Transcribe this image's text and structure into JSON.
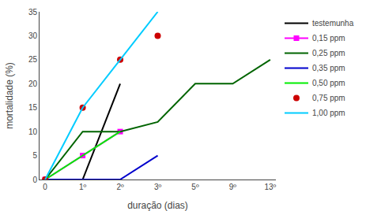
{
  "chart_data": {
    "type": "line",
    "xlabel": "duração (dias)",
    "ylabel": "mortalidade (%)",
    "categories": [
      "0",
      "1º",
      "2º",
      "3º",
      "5º",
      "9º",
      "13º"
    ],
    "series": [
      {
        "name": "testemunha",
        "color": "#000000",
        "marker": "none",
        "line_style": "solid",
        "values": [
          null,
          0,
          20,
          null,
          null,
          null,
          null
        ]
      },
      {
        "name": "0,15 ppm",
        "color": "#ff00ff",
        "marker": "square",
        "line_style": "solid",
        "values": [
          0,
          5,
          10,
          null,
          null,
          null,
          null
        ]
      },
      {
        "name": "0,25 ppm",
        "color": "#006400",
        "marker": "none",
        "line_style": "solid",
        "values": [
          0,
          10,
          10,
          12,
          20,
          20,
          25
        ]
      },
      {
        "name": "0,35 ppm",
        "color": "#0000cc",
        "marker": "none",
        "line_style": "solid",
        "values": [
          0,
          0,
          0,
          5,
          null,
          null,
          null
        ]
      },
      {
        "name": "0,50 ppm",
        "color": "#00ee00",
        "marker": "none",
        "line_style": "solid",
        "values": [
          0,
          5,
          10,
          null,
          null,
          null,
          null
        ]
      },
      {
        "name": "0,75 ppm",
        "color": "#cc0000",
        "marker": "circle",
        "line_style": "none",
        "values": [
          0,
          15,
          25,
          30,
          null,
          null,
          null
        ]
      },
      {
        "name": "1,00 ppm",
        "color": "#00ccff",
        "marker": "none",
        "line_style": "solid",
        "values": [
          0,
          15,
          25,
          35,
          null,
          null,
          null
        ]
      }
    ],
    "ylim": [
      0,
      35
    ],
    "yticks": [
      0,
      5,
      10,
      15,
      20,
      25,
      30,
      35
    ],
    "grid": false,
    "legend": "right"
  }
}
